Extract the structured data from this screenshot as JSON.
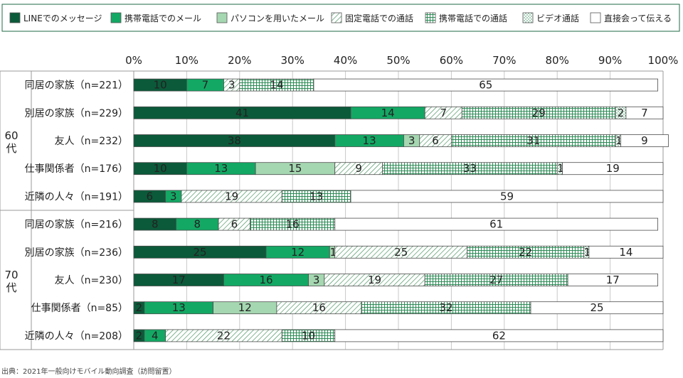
{
  "chart_data": {
    "type": "bar",
    "orientation": "horizontal",
    "stacked": true,
    "percent": true,
    "xlim": [
      0,
      100
    ],
    "x_ticks": [
      "0%",
      "10%",
      "20%",
      "30%",
      "40%",
      "50%",
      "60%",
      "70%",
      "80%",
      "90%",
      "100%"
    ],
    "legend_position": "top",
    "groups": [
      {
        "label": "60代",
        "categories": [
          "同居の家族（n=221）",
          "別居の家族（n=229）",
          "友人（n=232）",
          "仕事関係者（n=176）",
          "近隣の人々（n=191）"
        ]
      },
      {
        "label": "70代",
        "categories": [
          "同居の家族（n=216）",
          "別居の家族（n=236）",
          "友人（n=230）",
          "仕事関係者（n=85）",
          "近隣の人々（n=208）"
        ]
      }
    ],
    "categories": [
      "同居の家族（n=221）",
      "別居の家族（n=229）",
      "友人（n=232）",
      "仕事関係者（n=176）",
      "近隣の人々（n=191）",
      "同居の家族（n=216）",
      "別居の家族（n=236）",
      "友人（n=230）",
      "仕事関係者（n=85）",
      "近隣の人々（n=208）"
    ],
    "series": [
      {
        "name": "LINEでのメッセージ",
        "pattern": "solid-dark",
        "color": "#0b5a3a",
        "values": [
          10,
          41,
          38,
          10,
          6,
          8,
          25,
          17,
          2,
          2
        ]
      },
      {
        "name": "携帯電話でのメール",
        "pattern": "solid",
        "color": "#13a864",
        "values": [
          7,
          14,
          13,
          13,
          3,
          8,
          12,
          16,
          13,
          4
        ]
      },
      {
        "name": "パソコンを用いたメール",
        "pattern": "solid-light",
        "color": "#a5d7b1",
        "values": [
          0,
          0,
          3,
          15,
          0,
          0,
          1,
          3,
          12,
          0
        ]
      },
      {
        "name": "固定電話での通話",
        "pattern": "diagonal",
        "color": "#4a9a5a",
        "values": [
          3,
          7,
          6,
          9,
          19,
          6,
          25,
          19,
          16,
          22
        ]
      },
      {
        "name": "携帯電話での通話",
        "pattern": "grid",
        "color": "#2e8b57",
        "values": [
          14,
          29,
          31,
          33,
          13,
          16,
          22,
          27,
          32,
          10
        ]
      },
      {
        "name": "ビデオ通話",
        "pattern": "dots",
        "color": "#2e8b57",
        "values": [
          0,
          2,
          1,
          1,
          0,
          0,
          1,
          0,
          0,
          0
        ]
      },
      {
        "name": "直接会って伝える",
        "pattern": "white",
        "color": "#ffffff",
        "values": [
          65,
          7,
          9,
          19,
          59,
          61,
          14,
          17,
          25,
          62
        ]
      }
    ],
    "data_labels": [
      [
        "10",
        "7",
        "0",
        "3",
        "14",
        "",
        "65"
      ],
      [
        "41",
        "14",
        "0",
        "7",
        "29",
        "2",
        "7"
      ],
      [
        "38",
        "13",
        "3",
        "6",
        "31",
        "1",
        "9"
      ],
      [
        "10",
        "13",
        "15",
        "9",
        "33",
        "1",
        "19"
      ],
      [
        "6",
        "3",
        "0",
        "19",
        "13",
        "",
        "59"
      ],
      [
        "8",
        "8",
        "0",
        "6",
        "16",
        "",
        "61"
      ],
      [
        "25",
        "12",
        "1",
        "25",
        "22",
        "1",
        "14"
      ],
      [
        "17",
        "16",
        "3",
        "19",
        "27",
        "",
        "17"
      ],
      [
        "2",
        "13",
        "12",
        "16",
        "32",
        "",
        "25"
      ],
      [
        "2",
        "4",
        "0",
        "22",
        "10",
        "",
        "62"
      ]
    ],
    "source": "出典：2021年一般向けモバイル動向調査（訪問留置）"
  }
}
